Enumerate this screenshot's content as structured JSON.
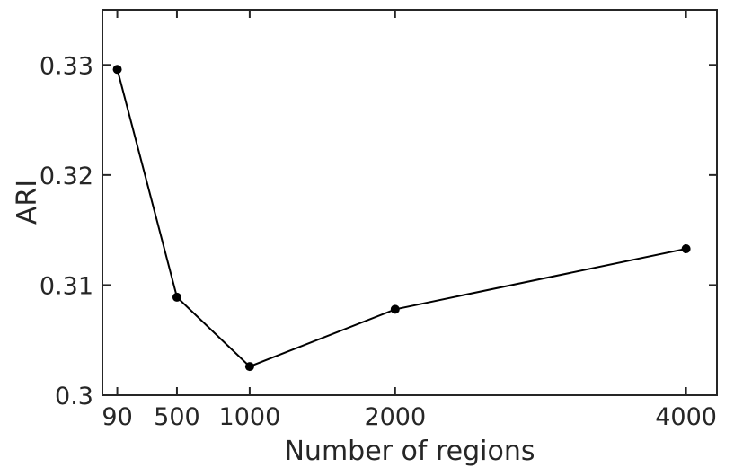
{
  "chart_data": {
    "type": "line",
    "xlabel": "Number of regions",
    "ylabel": "ARI",
    "xlim": [
      0,
      4200
    ],
    "ylim": [
      0.3,
      0.335
    ],
    "xticks": [
      90,
      500,
      1000,
      2000,
      4000
    ],
    "xtick_labels": [
      "90",
      "500",
      "1000",
      "2000",
      "4000"
    ],
    "yticks": [
      0.3,
      0.31,
      0.32,
      0.33
    ],
    "ytick_labels": [
      "0.3",
      "0.31",
      "0.32",
      "0.33"
    ],
    "grid": false,
    "box": true,
    "series": [
      {
        "x": [
          90,
          500,
          1000,
          2000,
          4000
        ],
        "y": [
          0.3296,
          0.3089,
          0.3026,
          0.3078,
          0.3133
        ],
        "color": "#000000",
        "marker": "circle"
      }
    ]
  }
}
